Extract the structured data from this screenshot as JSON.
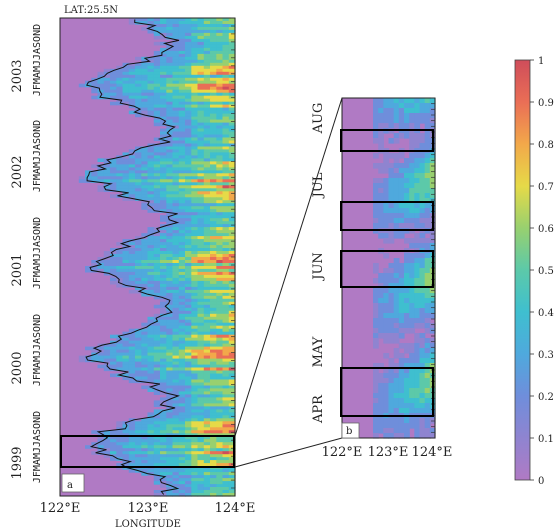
{
  "chart_data": [
    {
      "type": "heatmap",
      "panel_label": "a",
      "lat_label": "LAT:25.5N",
      "xlabel": "LONGITUDE",
      "x_ticks": [
        "122°E",
        "123°E",
        "124°E"
      ],
      "xlim": [
        122,
        124
      ],
      "years": [
        "1999",
        "2000",
        "2001",
        "2002",
        "2003"
      ],
      "month_strip": "JFMAMJJASOND",
      "ylim": [
        "1999-01",
        "2003-12"
      ],
      "highlight_box": {
        "lon": [
          122,
          124
        ],
        "months": [
          "1999-04",
          "1999-08"
        ]
      }
    },
    {
      "type": "heatmap",
      "panel_label": "b",
      "x_ticks": [
        "122°E",
        "123°E",
        "124°E"
      ],
      "xlim": [
        122,
        124
      ],
      "months": [
        "APR",
        "MAY",
        "JUN",
        "JUL",
        "AUG"
      ],
      "ylim": [
        "1999-04",
        "1999-08"
      ],
      "boxes": [
        {
          "lon": [
            122,
            124
          ],
          "months": [
            "1999-04-04",
            "1999-04-30"
          ]
        },
        {
          "lon": [
            122,
            124
          ],
          "months": [
            "1999-06-01",
            "1999-06-25"
          ]
        },
        {
          "lon": [
            122,
            124
          ],
          "months": [
            "1999-06-28",
            "1999-07-16"
          ]
        },
        {
          "lon": [
            122,
            124
          ],
          "months": [
            "1999-08-02",
            "1999-08-14"
          ]
        }
      ]
    }
  ],
  "colorbar": {
    "ticks": [
      "0",
      "0.1",
      "0.2",
      "0.3",
      "0.4",
      "0.5",
      "0.6",
      "0.7",
      "0.8",
      "0.9",
      "1"
    ],
    "colors": [
      "#b07ac4",
      "#8f84d0",
      "#6f8edb",
      "#4fa9dd",
      "#3fbfcf",
      "#5cc9a9",
      "#98d06f",
      "#e6da48",
      "#f2a84a",
      "#ea6e56",
      "#cf4d5a"
    ]
  }
}
